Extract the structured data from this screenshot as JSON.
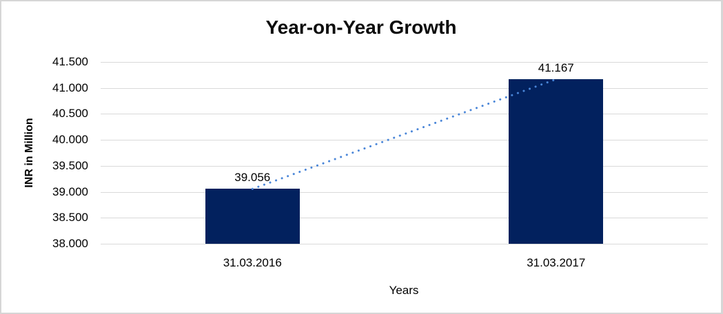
{
  "frame": {
    "background": "#ffffff",
    "border_color": "#d6d6d6"
  },
  "chart_data": {
    "type": "bar",
    "title": "Year-on-Year Growth",
    "xlabel": "Years",
    "ylabel": "INR in Million",
    "categories": [
      "31.03.2016",
      "31.03.2017"
    ],
    "values": [
      39.056,
      41.167
    ],
    "value_labels": [
      "39.056",
      "41.167"
    ],
    "ylim": [
      38.0,
      41.5
    ],
    "ytick_step": 0.5,
    "ytick_labels": [
      "41.500",
      "41.000",
      "40.500",
      "40.000",
      "39.500",
      "39.000",
      "38.500",
      "38.000"
    ],
    "grid": true,
    "legend": "none",
    "bar_color": "#02215e",
    "gridline_color": "#d9d9d9",
    "text_color": "#000000",
    "trendline": {
      "type": "linear",
      "style": "dotted",
      "color": "#4a86d8"
    }
  }
}
